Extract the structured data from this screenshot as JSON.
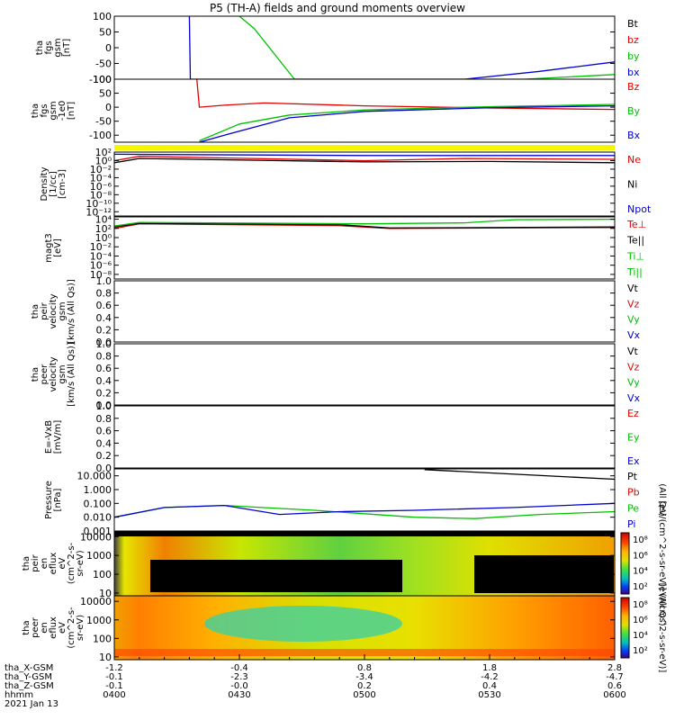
{
  "title": "P5 (TH-A) fields and ground moments overview",
  "panels": [
    {
      "id": "fgs",
      "ylabel": [
        "tha",
        "fgs",
        "gsm",
        "[nT]"
      ],
      "ticks": [
        {
          "v": 100,
          "t": "100"
        },
        {
          "v": 50,
          "t": "50"
        },
        {
          "v": 0,
          "t": "0"
        },
        {
          "v": -50,
          "t": "-50"
        },
        {
          "v": -100,
          "t": "-100"
        }
      ],
      "ymin": -100,
      "ymax": 100,
      "log": false,
      "legend": [
        {
          "t": "Bt",
          "c": "#000000"
        },
        {
          "t": "bz",
          "c": "#e00000"
        },
        {
          "t": "by",
          "c": "#00c000"
        },
        {
          "t": "bx",
          "c": "#0000d0"
        }
      ]
    },
    {
      "id": "fgs_hr",
      "ylabel": [
        "tha",
        "fgs",
        "gsm",
        "-1e0",
        "[nT]"
      ],
      "ticks": [
        {
          "v": 100,
          "t": "100"
        },
        {
          "v": 50,
          "t": "50"
        },
        {
          "v": 0,
          "t": "0"
        },
        {
          "v": -50,
          "t": "-50"
        },
        {
          "v": -100,
          "t": "-100"
        }
      ],
      "ymin": -125,
      "ymax": 100,
      "log": false,
      "legend": [
        {
          "t": "Bz",
          "c": "#e00000"
        },
        {
          "t": "By",
          "c": "#00c000"
        },
        {
          "t": "Bx",
          "c": "#0000d0"
        }
      ]
    },
    {
      "id": "density",
      "ylabel": [
        "Density",
        "[1/cc]",
        "[cm-3]"
      ],
      "ticks": [
        {
          "v": 2,
          "t": "10²"
        },
        {
          "v": 0,
          "t": "10⁰"
        },
        {
          "v": -2,
          "t": "10⁻²"
        },
        {
          "v": -4,
          "t": "10⁻⁴"
        },
        {
          "v": -6,
          "t": "10⁻⁶"
        },
        {
          "v": -8,
          "t": "10⁻⁸"
        },
        {
          "v": -10,
          "t": "10⁻¹⁰"
        },
        {
          "v": -12,
          "t": "10⁻¹²"
        }
      ],
      "ymin": -13,
      "ymax": 2,
      "log": true,
      "legend": [
        {
          "t": "Ne",
          "c": "#e00000"
        },
        {
          "t": "Ni",
          "c": "#000000"
        },
        {
          "t": "Npot",
          "c": "#0000d0"
        }
      ]
    },
    {
      "id": "temp",
      "ylabel": [
        "magt3",
        "[eV]"
      ],
      "ticks": [
        {
          "v": 4,
          "t": "10⁴"
        },
        {
          "v": 2,
          "t": "10²"
        },
        {
          "v": 0,
          "t": "10⁰"
        },
        {
          "v": -2,
          "t": "10⁻²"
        },
        {
          "v": -4,
          "t": "10⁻⁴"
        },
        {
          "v": -6,
          "t": "10⁻⁶"
        },
        {
          "v": -8,
          "t": "10⁻⁸"
        }
      ],
      "ymin": -9,
      "ymax": 4.5,
      "log": true,
      "legend": [
        {
          "t": "Te⊥",
          "c": "#e00000"
        },
        {
          "t": "Te||",
          "c": "#000000"
        },
        {
          "t": "Ti⊥",
          "c": "#00c000"
        },
        {
          "t": "Ti||",
          "c": "#00c000"
        }
      ]
    },
    {
      "id": "peir_vel",
      "ylabel": [
        "tha",
        "peir",
        "velocity",
        "gsm",
        "[km/s (All Qs)]"
      ],
      "ticks": [
        {
          "v": 1.0,
          "t": "1.0"
        },
        {
          "v": 0.8,
          "t": "0.8"
        },
        {
          "v": 0.6,
          "t": "0.6"
        },
        {
          "v": 0.4,
          "t": "0.4"
        },
        {
          "v": 0.2,
          "t": "0.2"
        },
        {
          "v": 0.0,
          "t": "0.0"
        }
      ],
      "ymin": 0,
      "ymax": 1,
      "log": false,
      "legend": [
        {
          "t": "Vt",
          "c": "#000000"
        },
        {
          "t": "Vz",
          "c": "#e00000"
        },
        {
          "t": "Vy",
          "c": "#00c000"
        },
        {
          "t": "Vx",
          "c": "#0000d0"
        }
      ]
    },
    {
      "id": "peer_vel",
      "ylabel": [
        "tha",
        "peer",
        "velocity",
        "gsm",
        "[km/s (All Qs)]"
      ],
      "ticks": [
        {
          "v": 1.0,
          "t": "1.0"
        },
        {
          "v": 0.8,
          "t": "0.8"
        },
        {
          "v": 0.6,
          "t": "0.6"
        },
        {
          "v": 0.4,
          "t": "0.4"
        },
        {
          "v": 0.2,
          "t": "0.2"
        },
        {
          "v": 0.0,
          "t": "0.0"
        }
      ],
      "ymin": 0,
      "ymax": 1,
      "log": false,
      "legend": [
        {
          "t": "Vt",
          "c": "#000000"
        },
        {
          "t": "Vz",
          "c": "#e00000"
        },
        {
          "t": "Vy",
          "c": "#00c000"
        },
        {
          "t": "Vx",
          "c": "#0000d0"
        }
      ]
    },
    {
      "id": "efield",
      "ylabel": [
        "E=-VxB",
        "[mV/m]"
      ],
      "ticks": [
        {
          "v": 1.0,
          "t": "1.0"
        },
        {
          "v": 0.8,
          "t": "0.8"
        },
        {
          "v": 0.6,
          "t": "0.6"
        },
        {
          "v": 0.4,
          "t": "0.4"
        },
        {
          "v": 0.2,
          "t": "0.2"
        },
        {
          "v": 0.0,
          "t": "0.0"
        }
      ],
      "ymin": 0,
      "ymax": 1,
      "log": false,
      "legend": [
        {
          "t": "Ez",
          "c": "#e00000"
        },
        {
          "t": "Ey",
          "c": "#00c000"
        },
        {
          "t": "Ex",
          "c": "#0000d0"
        }
      ]
    },
    {
      "id": "pressure",
      "ylabel": [
        "Pressure",
        "[nPa]"
      ],
      "ticks": [
        {
          "v": 1,
          "t": "10.000"
        },
        {
          "v": 0,
          "t": "1.000"
        },
        {
          "v": -1,
          "t": "0.100"
        },
        {
          "v": -2,
          "t": "0.010"
        },
        {
          "v": -3,
          "t": "0.001"
        }
      ],
      "ymin": -3,
      "ymax": 1.5,
      "log": true,
      "legend": [
        {
          "t": "Pt",
          "c": "#000000"
        },
        {
          "t": "Pb",
          "c": "#e00000"
        },
        {
          "t": "Pe",
          "c": "#00c000"
        },
        {
          "t": "Pi",
          "c": "#0000d0"
        }
      ],
      "legend_note": "(All Qs)"
    },
    {
      "id": "peir_spec",
      "ylabel": [
        "tha",
        "peir",
        "en",
        "eflux",
        "eV",
        "(cm^2-s-",
        "sr-eV)"
      ],
      "ticks": [
        {
          "v": 4,
          "t": "10000"
        },
        {
          "v": 3,
          "t": "1000"
        },
        {
          "v": 2,
          "t": "100"
        },
        {
          "v": 1,
          "t": "10"
        }
      ],
      "ymin": 0.85,
      "ymax": 4.3,
      "log": true,
      "spectrogram": true
    },
    {
      "id": "peer_spec",
      "ylabel": [
        "tha",
        "peer",
        "en",
        "eflux",
        "eV",
        "(cm^2-s-",
        "sr-eV)"
      ],
      "ticks": [
        {
          "v": 4,
          "t": "10000"
        },
        {
          "v": 3,
          "t": "1000"
        },
        {
          "v": 2,
          "t": "100"
        },
        {
          "v": 1,
          "t": "10"
        }
      ],
      "ymin": 0.85,
      "ymax": 4.3,
      "log": true,
      "spectrogram": true
    }
  ],
  "colorbars": [
    {
      "ticks": [
        "10⁸",
        "10⁶",
        "10⁴",
        "10²"
      ],
      "label": "[eV/(cm^2-s-sr-eV)] (All Qs)"
    },
    {
      "ticks": [
        "10⁸",
        "10⁶",
        "10⁴",
        "10²"
      ],
      "label": "[eV/(cm^2-s-sr-eV)]"
    }
  ],
  "footer": {
    "row_labels": [
      "tha_X-GSM",
      "tha_Y-GSM",
      "tha_Z-GSM",
      "hhmm",
      "2021 Jan 13"
    ],
    "columns": [
      {
        "x": "-1.2",
        "y": "-0.1",
        "z": "-0.1",
        "t": "0400"
      },
      {
        "x": "-0.4",
        "y": "-2.3",
        "z": "-0.0",
        "t": "0430"
      },
      {
        "x": "0.8",
        "y": "-3.4",
        "z": "0.2",
        "t": "0500"
      },
      {
        "x": "1.8",
        "y": "-4.2",
        "z": "0.4",
        "t": "0530"
      },
      {
        "x": "2.8",
        "y": "-4.7",
        "z": "0.6",
        "t": "0600"
      }
    ]
  },
  "chart_data": {
    "type": "line",
    "title": "P5 (TH-A) fields and ground moments overview",
    "x": [
      "0400",
      "0430",
      "0500",
      "0530",
      "0600"
    ],
    "xlabel": "hhmm",
    "series": [
      {
        "panel": "fgs",
        "name": "bx",
        "points": [
          [
            0.15,
            100
          ],
          [
            0.152,
            -100
          ],
          [
            0.7,
            -100
          ],
          [
            0.85,
            -75
          ],
          [
            1.0,
            -45
          ]
        ]
      },
      {
        "panel": "fgs",
        "name": "by",
        "points": [
          [
            0.25,
            100
          ],
          [
            0.28,
            60
          ],
          [
            0.32,
            -20
          ],
          [
            0.36,
            -100
          ],
          [
            0.82,
            -100
          ],
          [
            1.0,
            -85
          ]
        ]
      },
      {
        "panel": "fgs_hr",
        "name": "Bz",
        "points": [
          [
            0.165,
            100
          ],
          [
            0.17,
            0
          ],
          [
            0.22,
            7
          ],
          [
            0.3,
            15
          ],
          [
            0.5,
            5
          ],
          [
            0.75,
            -3
          ],
          [
            1.0,
            -8
          ]
        ]
      },
      {
        "panel": "fgs_hr",
        "name": "By",
        "points": [
          [
            0.17,
            -120
          ],
          [
            0.25,
            -60
          ],
          [
            0.35,
            -28
          ],
          [
            0.5,
            -10
          ],
          [
            0.75,
            2
          ],
          [
            1.0,
            10
          ]
        ]
      },
      {
        "panel": "fgs_hr",
        "name": "Bx",
        "points": [
          [
            0.17,
            -125
          ],
          [
            0.22,
            -100
          ],
          [
            0.35,
            -38
          ],
          [
            0.5,
            -15
          ],
          [
            0.75,
            -2
          ],
          [
            1.0,
            5
          ]
        ]
      },
      {
        "panel": "density",
        "name": "Ne",
        "points": [
          [
            0,
            0
          ],
          [
            0.05,
            1
          ],
          [
            0.5,
            0
          ],
          [
            0.7,
            0.5
          ],
          [
            1.0,
            0.3
          ]
        ]
      },
      {
        "panel": "density",
        "name": "Ni",
        "points": [
          [
            0,
            -0.5
          ],
          [
            0.05,
            0.5
          ],
          [
            0.5,
            -0.3
          ],
          [
            0.75,
            -0.2
          ],
          [
            1.0,
            -0.5
          ]
        ]
      },
      {
        "panel": "density",
        "name": "Npot",
        "points": [
          [
            0,
            1.5
          ],
          [
            0.5,
            1.2
          ],
          [
            1.0,
            1.2
          ]
        ]
      },
      {
        "panel": "temp",
        "name": "Te⊥",
        "points": [
          [
            0,
            2
          ],
          [
            0.05,
            3
          ],
          [
            0.45,
            2.6
          ],
          [
            0.55,
            2
          ],
          [
            1.0,
            2.2
          ]
        ]
      },
      {
        "panel": "temp",
        "name": "Te||",
        "points": [
          [
            0,
            2.3
          ],
          [
            0.05,
            3.1
          ],
          [
            0.45,
            2.8
          ],
          [
            0.55,
            2.1
          ],
          [
            1.0,
            2.3
          ]
        ]
      },
      {
        "panel": "temp",
        "name": "Ti⊥",
        "points": [
          [
            0,
            2.5
          ],
          [
            0.05,
            3.3
          ],
          [
            0.5,
            3.0
          ],
          [
            0.7,
            3.2
          ],
          [
            0.8,
            3.9
          ],
          [
            1.0,
            4.0
          ]
        ]
      },
      {
        "panel": "pressure",
        "name": "Pt",
        "points": [
          [
            0.62,
            1.45
          ],
          [
            1.0,
            0.75
          ]
        ]
      },
      {
        "panel": "pressure",
        "name": "Pe",
        "points": [
          [
            0,
            -2
          ],
          [
            0.1,
            -1.3
          ],
          [
            0.22,
            -1.15
          ],
          [
            0.4,
            -1.5
          ],
          [
            0.6,
            -2.0
          ],
          [
            0.72,
            -2.1
          ],
          [
            0.85,
            -1.8
          ],
          [
            1.0,
            -1.6
          ]
        ]
      },
      {
        "panel": "pressure",
        "name": "Pi",
        "points": [
          [
            0,
            -2
          ],
          [
            0.1,
            -1.3
          ],
          [
            0.22,
            -1.15
          ],
          [
            0.33,
            -1.8
          ],
          [
            0.45,
            -1.6
          ],
          [
            0.6,
            -1.5
          ],
          [
            0.8,
            -1.3
          ],
          [
            1.0,
            -1.0
          ]
        ]
      }
    ]
  }
}
